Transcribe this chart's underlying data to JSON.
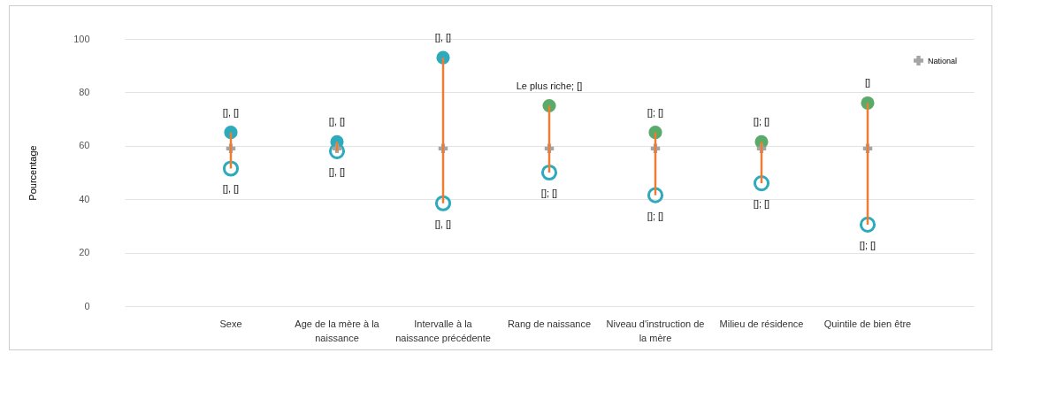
{
  "chart_data": {
    "type": "scatter",
    "ylabel": "Pourcentage",
    "categories": [
      "Sexe",
      "Age de la mère à la naissance",
      "Intervalle à la naissance précédente",
      "Rang de naissance",
      "Niveau d'instruction de la mère",
      "Milieu de résidence",
      "Quintile de bien être"
    ],
    "ylim": [
      0,
      100
    ],
    "yticks": [
      0,
      20,
      40,
      60,
      80,
      100
    ],
    "grid": "y",
    "legend": "top right",
    "series": [
      {
        "type": "bar",
        "color": "#ed7d31",
        "base": [
          51.5,
          58,
          38.5,
          50,
          41.5,
          46,
          30.5
        ],
        "values": [
          13.5,
          3.5,
          54.5,
          25,
          23.5,
          15.5,
          45.5
        ]
      },
      {
        "marker": "circle",
        "colors": [
          "#2eaabd",
          "#2eaabd",
          "#2eaabd",
          "#5aaa6a",
          "#5aaa6a",
          "#5aaa6a",
          "#5aaa6a"
        ],
        "values": [
          65,
          61.5,
          93,
          75,
          65,
          61.5,
          76
        ],
        "value_labels": [
          "[], []",
          "[], []",
          "[], []",
          "Le plus riche; []",
          "[]; []",
          "[]; []",
          "[]"
        ]
      },
      {
        "marker": "circle",
        "color": "#2eaabd",
        "values": [
          51.5,
          58,
          38.5,
          50,
          41.5,
          46,
          30.5
        ],
        "value_labels": [
          "[], []",
          "[], []",
          "[], []",
          "[]; []",
          "[]; []",
          "[]; []",
          "[]; []"
        ]
      },
      {
        "name": "National",
        "marker": "cross",
        "color": "#a5a5a5",
        "values": [
          59,
          59,
          59,
          59,
          59,
          59,
          59
        ]
      }
    ]
  }
}
